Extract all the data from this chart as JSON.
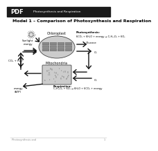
{
  "header_bg": "#1a1a1a",
  "header_text": "Photosynthesis and Respiration",
  "header_pdf_text": "PDF",
  "page_bg": "#ffffff",
  "title": "Model 1 – Comparison of Photosynthesis and Respiration",
  "photosynthesis_eq": "6CO₂ + 6H₂O + energy → C₆H₁₂O₆ + 6O₂",
  "photosynthesis_label": "Photosynthesis:",
  "chloroplast_label": "Chloroplast",
  "mitochondria_label": "Mitochondria",
  "respiration_label": "Respiration:",
  "respiration_eq": "C₆H₁₂O₆ + 6O₂ → 6H₂O + 6CO₂ + energy",
  "sunlight_label": "Sunlight\nenergy",
  "co2_h2o_label": "CO₂ + H₂O",
  "glucose_label": "Glucose",
  "o2_top_label": "O₂",
  "o2_bottom_label": "O₂",
  "energy_label": "energy\n(ATP)",
  "footer_text": "Photosynthesis and",
  "footer_page": "1",
  "arrow_color": "#111111",
  "chloroplast_fill": "#cccccc",
  "mitochondria_fill": "#cccccc",
  "title_fontsize": 4.5,
  "label_fontsize": 3.5,
  "eq_fontsize": 2.8,
  "small_fontsize": 2.8,
  "footer_fontsize": 2.5
}
